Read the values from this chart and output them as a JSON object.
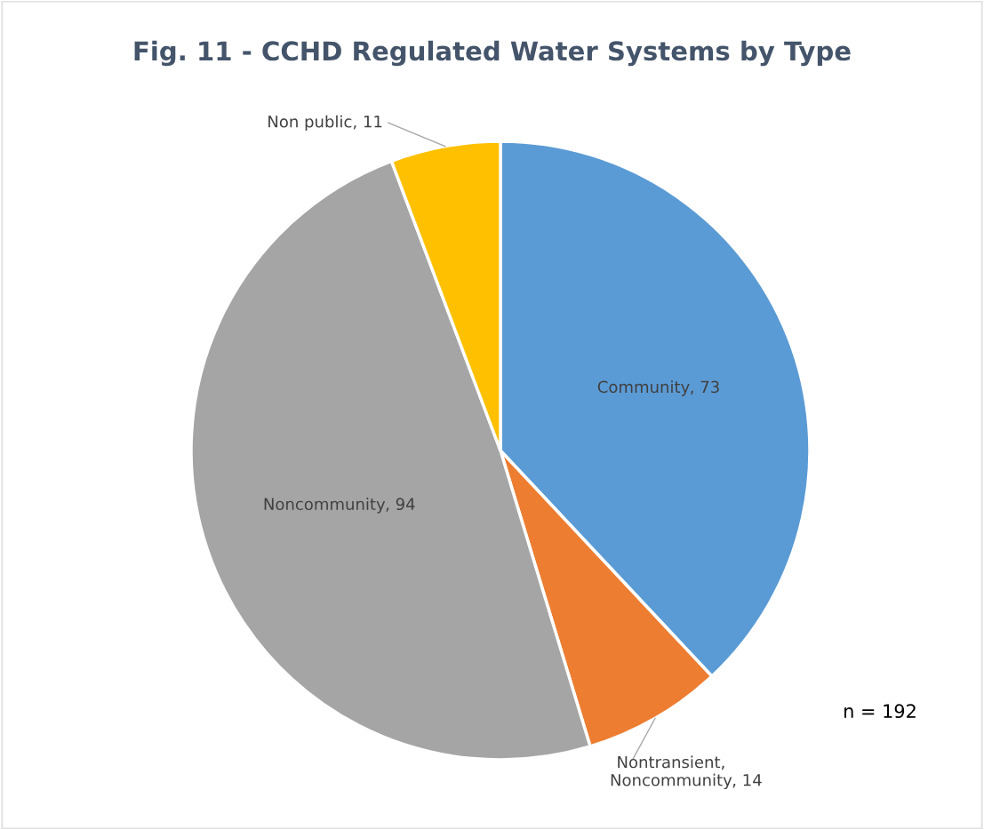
{
  "chart_data": {
    "type": "pie",
    "title": "Fig. 11 - CCHD Regulated Water Systems by Type",
    "categories": [
      "Community",
      "Nontransient, Noncommunity",
      "Noncommunity",
      "Non public"
    ],
    "values": [
      73,
      14,
      94,
      11
    ],
    "colors": [
      "#5b9bd5",
      "#ed7d31",
      "#a5a5a5",
      "#ffc000"
    ],
    "value_labels": [
      ", 73",
      ", 14",
      ", 94",
      ", 11"
    ],
    "legend": false,
    "annotations": [
      "n = 192"
    ]
  }
}
